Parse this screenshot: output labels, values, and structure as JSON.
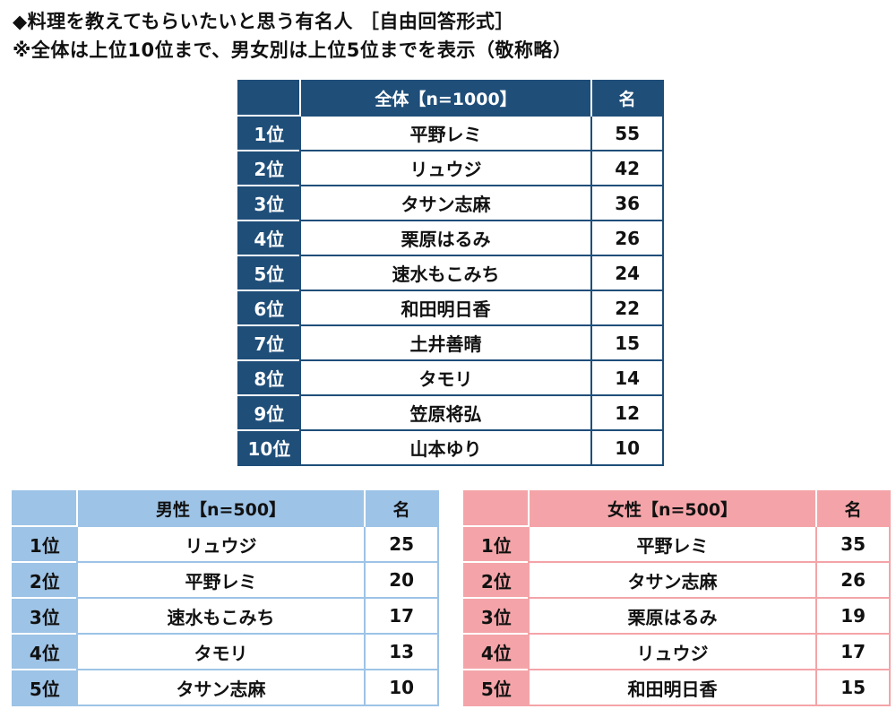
{
  "header": {
    "title": "◆料理を教えてもらいたいと思う有名人 ［自由回答形式］",
    "subtitle": "※全体は上位10位まで、男女別は上位5位までを表示（敬称略）"
  },
  "overall": {
    "rank_header": "",
    "name_header": "全体【n=1000】",
    "count_header": "名",
    "rows": [
      {
        "rank": "1位",
        "name": "平野レミ",
        "count": "55"
      },
      {
        "rank": "2位",
        "name": "リュウジ",
        "count": "42"
      },
      {
        "rank": "3位",
        "name": "タサン志麻",
        "count": "36"
      },
      {
        "rank": "4位",
        "name": "栗原はるみ",
        "count": "26"
      },
      {
        "rank": "5位",
        "name": "速水もこみち",
        "count": "24"
      },
      {
        "rank": "6位",
        "name": "和田明日香",
        "count": "22"
      },
      {
        "rank": "7位",
        "name": "土井善晴",
        "count": "15"
      },
      {
        "rank": "8位",
        "name": "タモリ",
        "count": "14"
      },
      {
        "rank": "9位",
        "name": "笠原将弘",
        "count": "12"
      },
      {
        "rank": "10位",
        "name": "山本ゆり",
        "count": "10"
      }
    ]
  },
  "male": {
    "rank_header": "",
    "name_header": "男性【n=500】",
    "count_header": "名",
    "rows": [
      {
        "rank": "1位",
        "name": "リュウジ",
        "count": "25"
      },
      {
        "rank": "2位",
        "name": "平野レミ",
        "count": "20"
      },
      {
        "rank": "3位",
        "name": "速水もこみち",
        "count": "17"
      },
      {
        "rank": "4位",
        "name": "タモリ",
        "count": "13"
      },
      {
        "rank": "5位",
        "name": "タサン志麻",
        "count": "10"
      }
    ]
  },
  "female": {
    "rank_header": "",
    "name_header": "女性【n=500】",
    "count_header": "名",
    "rows": [
      {
        "rank": "1位",
        "name": "平野レミ",
        "count": "35"
      },
      {
        "rank": "2位",
        "name": "タサン志麻",
        "count": "26"
      },
      {
        "rank": "3位",
        "name": "栗原はるみ",
        "count": "19"
      },
      {
        "rank": "4位",
        "name": "リュウジ",
        "count": "17"
      },
      {
        "rank": "5位",
        "name": "和田明日香",
        "count": "15"
      }
    ]
  },
  "colors": {
    "overall_accent": "#1f4e79",
    "male_accent": "#9dc3e6",
    "female_accent": "#f4a4a8"
  }
}
